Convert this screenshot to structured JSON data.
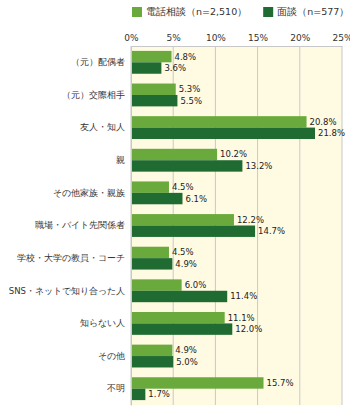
{
  "chart_data": {
    "type": "bar",
    "orientation": "horizontal",
    "categories": [
      "（元）配偶者",
      "（元）交際相手",
      "友人・知人",
      "親",
      "その他家族・親族",
      "職場・バイト先関係者",
      "学校・大学の教員・コーチ",
      "SNS・ネットで知り合った人",
      "知らない人",
      "その他",
      "不明"
    ],
    "series": [
      {
        "name": "電話相談（n=2,510）",
        "color": "#6aaa3c",
        "values": [
          4.8,
          5.3,
          20.8,
          10.2,
          4.5,
          12.2,
          4.5,
          6.0,
          11.1,
          4.9,
          15.7
        ],
        "value_labels": [
          "4.8%",
          "5.3%",
          "20.8%",
          "10.2%",
          "4.5%",
          "12.2%",
          "4.5%",
          "6.0%",
          "11.1%",
          "4.9%",
          "15.7%"
        ]
      },
      {
        "name": "面談（n=577）",
        "color": "#1f6b32",
        "values": [
          3.6,
          5.5,
          21.8,
          13.2,
          6.1,
          14.7,
          4.9,
          11.4,
          12.0,
          5.0,
          1.7
        ],
        "value_labels": [
          "3.6%",
          "5.5%",
          "21.8%",
          "13.2%",
          "6.1%",
          "14.7%",
          "4.9%",
          "11.4%",
          "12.0%",
          "5.0%",
          "1.7%"
        ]
      }
    ],
    "xlim": [
      0,
      25
    ],
    "xticks": [
      {
        "value": 0,
        "label": "0%"
      },
      {
        "value": 5,
        "label": "5%"
      },
      {
        "value": 10,
        "label": "10%"
      },
      {
        "value": 15,
        "label": "15%"
      },
      {
        "value": 20,
        "label": "20%"
      },
      {
        "value": 25,
        "label": "25%"
      }
    ],
    "grid": true,
    "legend": "top",
    "data_labels": true
  }
}
